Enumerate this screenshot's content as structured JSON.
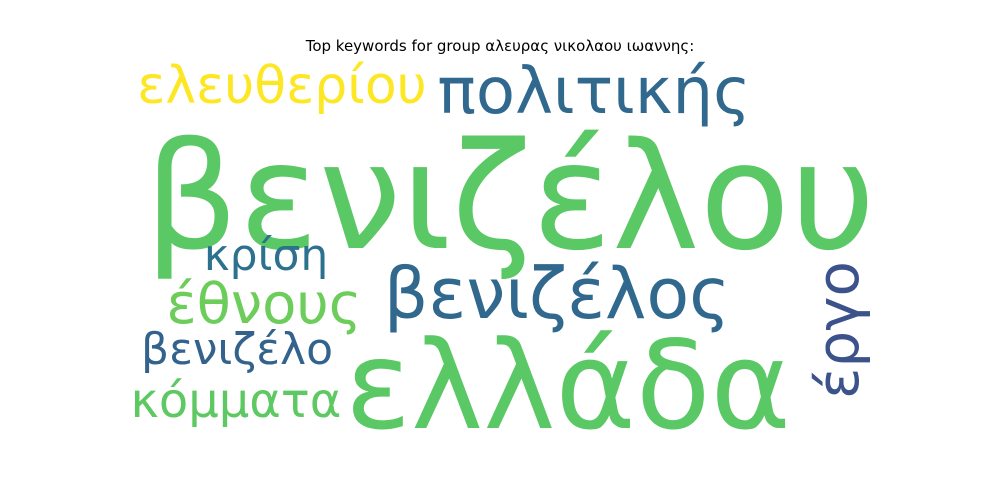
{
  "title": "Top keywords for group αλευρας νικολαου ιωαννης:",
  "words": [
    {
      "text": "βενιζέλου",
      "color": "#5ac864"
    },
    {
      "text": "ελλάδα",
      "color": "#5ac864"
    },
    {
      "text": "πολιτικής",
      "color": "#31688e"
    },
    {
      "text": "ελευθερίου",
      "color": "#fde725"
    },
    {
      "text": "βενιζέλος",
      "color": "#31688e"
    },
    {
      "text": "έθνους",
      "color": "#6ccd5a"
    },
    {
      "text": "κρίση",
      "color": "#2c728e"
    },
    {
      "text": "βενιζέλο",
      "color": "#33638d"
    },
    {
      "text": "κόμματα",
      "color": "#5ec962"
    },
    {
      "text": "έργο",
      "color": "#3b528b"
    }
  ]
}
